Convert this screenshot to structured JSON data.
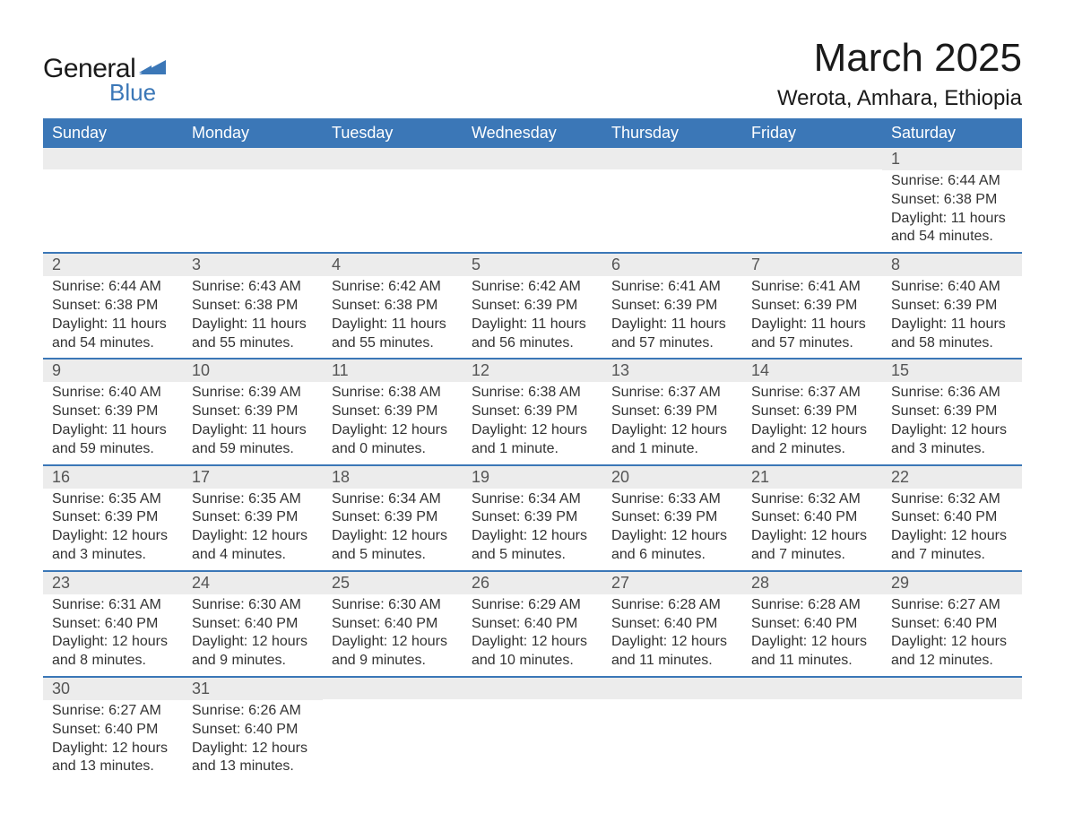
{
  "brand": {
    "word1": "General",
    "word2": "Blue",
    "accent_color": "#3b77b7"
  },
  "title": "March 2025",
  "location": "Werota, Amhara, Ethiopia",
  "colors": {
    "header_bg": "#3b77b7",
    "header_text": "#ffffff",
    "daynum_bg": "#ececec",
    "row_divider": "#3b77b7",
    "body_text": "#333333",
    "page_bg": "#ffffff"
  },
  "fonts": {
    "title_size_pt": 33,
    "location_size_pt": 18,
    "header_size_pt": 14,
    "body_size_pt": 12
  },
  "weekday_headers": [
    "Sunday",
    "Monday",
    "Tuesday",
    "Wednesday",
    "Thursday",
    "Friday",
    "Saturday"
  ],
  "weeks": [
    [
      {
        "day": "",
        "sunrise": "",
        "sunset": "",
        "daylight": ""
      },
      {
        "day": "",
        "sunrise": "",
        "sunset": "",
        "daylight": ""
      },
      {
        "day": "",
        "sunrise": "",
        "sunset": "",
        "daylight": ""
      },
      {
        "day": "",
        "sunrise": "",
        "sunset": "",
        "daylight": ""
      },
      {
        "day": "",
        "sunrise": "",
        "sunset": "",
        "daylight": ""
      },
      {
        "day": "",
        "sunrise": "",
        "sunset": "",
        "daylight": ""
      },
      {
        "day": "1",
        "sunrise": "Sunrise: 6:44 AM",
        "sunset": "Sunset: 6:38 PM",
        "daylight": "Daylight: 11 hours and 54 minutes."
      }
    ],
    [
      {
        "day": "2",
        "sunrise": "Sunrise: 6:44 AM",
        "sunset": "Sunset: 6:38 PM",
        "daylight": "Daylight: 11 hours and 54 minutes."
      },
      {
        "day": "3",
        "sunrise": "Sunrise: 6:43 AM",
        "sunset": "Sunset: 6:38 PM",
        "daylight": "Daylight: 11 hours and 55 minutes."
      },
      {
        "day": "4",
        "sunrise": "Sunrise: 6:42 AM",
        "sunset": "Sunset: 6:38 PM",
        "daylight": "Daylight: 11 hours and 55 minutes."
      },
      {
        "day": "5",
        "sunrise": "Sunrise: 6:42 AM",
        "sunset": "Sunset: 6:39 PM",
        "daylight": "Daylight: 11 hours and 56 minutes."
      },
      {
        "day": "6",
        "sunrise": "Sunrise: 6:41 AM",
        "sunset": "Sunset: 6:39 PM",
        "daylight": "Daylight: 11 hours and 57 minutes."
      },
      {
        "day": "7",
        "sunrise": "Sunrise: 6:41 AM",
        "sunset": "Sunset: 6:39 PM",
        "daylight": "Daylight: 11 hours and 57 minutes."
      },
      {
        "day": "8",
        "sunrise": "Sunrise: 6:40 AM",
        "sunset": "Sunset: 6:39 PM",
        "daylight": "Daylight: 11 hours and 58 minutes."
      }
    ],
    [
      {
        "day": "9",
        "sunrise": "Sunrise: 6:40 AM",
        "sunset": "Sunset: 6:39 PM",
        "daylight": "Daylight: 11 hours and 59 minutes."
      },
      {
        "day": "10",
        "sunrise": "Sunrise: 6:39 AM",
        "sunset": "Sunset: 6:39 PM",
        "daylight": "Daylight: 11 hours and 59 minutes."
      },
      {
        "day": "11",
        "sunrise": "Sunrise: 6:38 AM",
        "sunset": "Sunset: 6:39 PM",
        "daylight": "Daylight: 12 hours and 0 minutes."
      },
      {
        "day": "12",
        "sunrise": "Sunrise: 6:38 AM",
        "sunset": "Sunset: 6:39 PM",
        "daylight": "Daylight: 12 hours and 1 minute."
      },
      {
        "day": "13",
        "sunrise": "Sunrise: 6:37 AM",
        "sunset": "Sunset: 6:39 PM",
        "daylight": "Daylight: 12 hours and 1 minute."
      },
      {
        "day": "14",
        "sunrise": "Sunrise: 6:37 AM",
        "sunset": "Sunset: 6:39 PM",
        "daylight": "Daylight: 12 hours and 2 minutes."
      },
      {
        "day": "15",
        "sunrise": "Sunrise: 6:36 AM",
        "sunset": "Sunset: 6:39 PM",
        "daylight": "Daylight: 12 hours and 3 minutes."
      }
    ],
    [
      {
        "day": "16",
        "sunrise": "Sunrise: 6:35 AM",
        "sunset": "Sunset: 6:39 PM",
        "daylight": "Daylight: 12 hours and 3 minutes."
      },
      {
        "day": "17",
        "sunrise": "Sunrise: 6:35 AM",
        "sunset": "Sunset: 6:39 PM",
        "daylight": "Daylight: 12 hours and 4 minutes."
      },
      {
        "day": "18",
        "sunrise": "Sunrise: 6:34 AM",
        "sunset": "Sunset: 6:39 PM",
        "daylight": "Daylight: 12 hours and 5 minutes."
      },
      {
        "day": "19",
        "sunrise": "Sunrise: 6:34 AM",
        "sunset": "Sunset: 6:39 PM",
        "daylight": "Daylight: 12 hours and 5 minutes."
      },
      {
        "day": "20",
        "sunrise": "Sunrise: 6:33 AM",
        "sunset": "Sunset: 6:39 PM",
        "daylight": "Daylight: 12 hours and 6 minutes."
      },
      {
        "day": "21",
        "sunrise": "Sunrise: 6:32 AM",
        "sunset": "Sunset: 6:40 PM",
        "daylight": "Daylight: 12 hours and 7 minutes."
      },
      {
        "day": "22",
        "sunrise": "Sunrise: 6:32 AM",
        "sunset": "Sunset: 6:40 PM",
        "daylight": "Daylight: 12 hours and 7 minutes."
      }
    ],
    [
      {
        "day": "23",
        "sunrise": "Sunrise: 6:31 AM",
        "sunset": "Sunset: 6:40 PM",
        "daylight": "Daylight: 12 hours and 8 minutes."
      },
      {
        "day": "24",
        "sunrise": "Sunrise: 6:30 AM",
        "sunset": "Sunset: 6:40 PM",
        "daylight": "Daylight: 12 hours and 9 minutes."
      },
      {
        "day": "25",
        "sunrise": "Sunrise: 6:30 AM",
        "sunset": "Sunset: 6:40 PM",
        "daylight": "Daylight: 12 hours and 9 minutes."
      },
      {
        "day": "26",
        "sunrise": "Sunrise: 6:29 AM",
        "sunset": "Sunset: 6:40 PM",
        "daylight": "Daylight: 12 hours and 10 minutes."
      },
      {
        "day": "27",
        "sunrise": "Sunrise: 6:28 AM",
        "sunset": "Sunset: 6:40 PM",
        "daylight": "Daylight: 12 hours and 11 minutes."
      },
      {
        "day": "28",
        "sunrise": "Sunrise: 6:28 AM",
        "sunset": "Sunset: 6:40 PM",
        "daylight": "Daylight: 12 hours and 11 minutes."
      },
      {
        "day": "29",
        "sunrise": "Sunrise: 6:27 AM",
        "sunset": "Sunset: 6:40 PM",
        "daylight": "Daylight: 12 hours and 12 minutes."
      }
    ],
    [
      {
        "day": "30",
        "sunrise": "Sunrise: 6:27 AM",
        "sunset": "Sunset: 6:40 PM",
        "daylight": "Daylight: 12 hours and 13 minutes."
      },
      {
        "day": "31",
        "sunrise": "Sunrise: 6:26 AM",
        "sunset": "Sunset: 6:40 PM",
        "daylight": "Daylight: 12 hours and 13 minutes."
      },
      {
        "day": "",
        "sunrise": "",
        "sunset": "",
        "daylight": ""
      },
      {
        "day": "",
        "sunrise": "",
        "sunset": "",
        "daylight": ""
      },
      {
        "day": "",
        "sunrise": "",
        "sunset": "",
        "daylight": ""
      },
      {
        "day": "",
        "sunrise": "",
        "sunset": "",
        "daylight": ""
      },
      {
        "day": "",
        "sunrise": "",
        "sunset": "",
        "daylight": ""
      }
    ]
  ]
}
